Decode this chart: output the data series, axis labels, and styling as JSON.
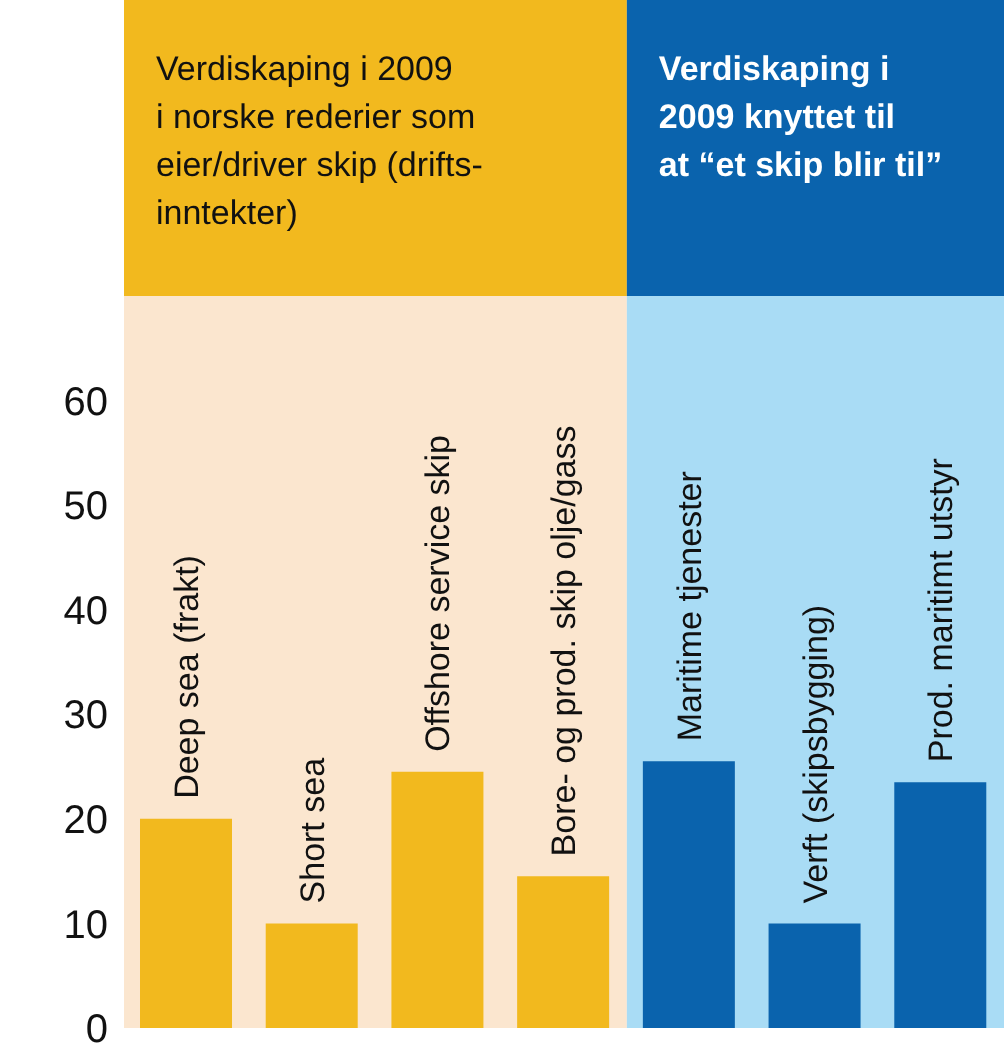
{
  "chart_data": {
    "type": "bar",
    "categories": [
      "Deep sea (frakt)",
      "Short sea",
      "Offshore service skip",
      "Bore- og prod. skip olje/gass",
      "Maritime tjenester",
      "Verft (skipsbygging)",
      "Prod. maritimt utstyr"
    ],
    "values": [
      20,
      10,
      24.5,
      14.5,
      25.5,
      10,
      23.5
    ],
    "colors": [
      "#f2b91e",
      "#f2b91e",
      "#f2b91e",
      "#f2b91e",
      "#0a63ad",
      "#0a63ad",
      "#0a63ad"
    ],
    "ylim": [
      0,
      70
    ],
    "yticks": [
      0,
      10,
      20,
      30,
      40,
      50,
      60
    ],
    "tick_labels": "y",
    "bands": [
      {
        "axis": "x",
        "from": "Deep sea (frakt)",
        "to": "Bore- og prod. skip olje/gass",
        "color": "#fbe6cf"
      },
      {
        "axis": "x",
        "from": "Maritime tjenester",
        "to": "Prod. maritimt utstyr",
        "color": "#a9dcf5"
      }
    ],
    "annotations": [
      "Verdiskaping i 2009\ni norske rederier som\neier/driver skip (drifts-\ninntekter)",
      "Verdiskaping i\n2009 knyttet til\nat “et skip blir til”"
    ]
  }
}
